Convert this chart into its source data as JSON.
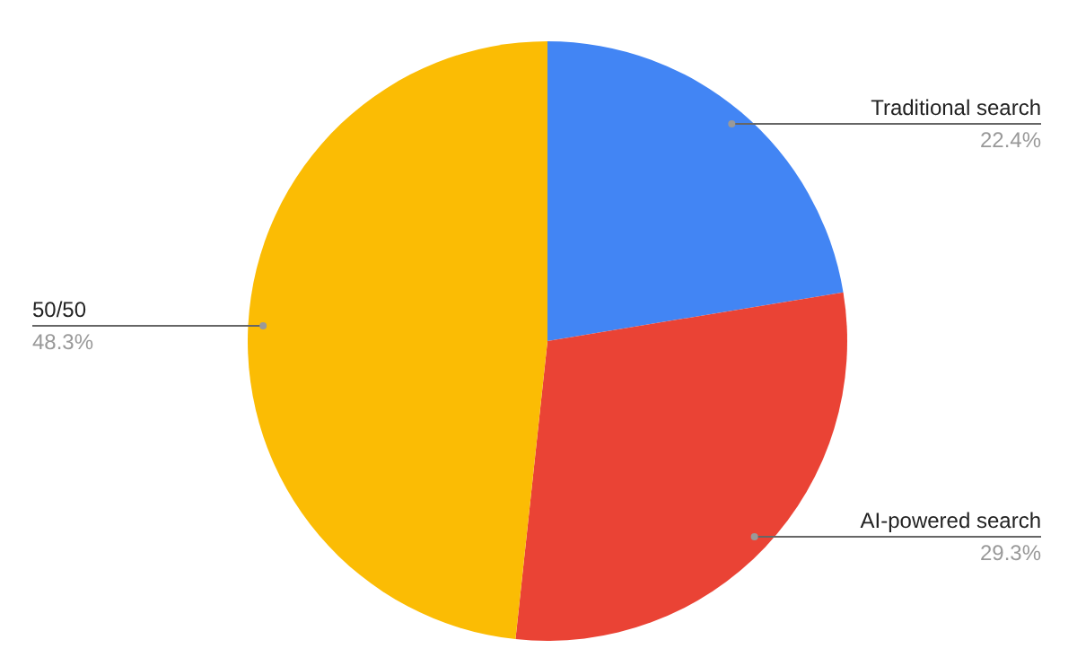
{
  "chart_data": {
    "type": "pie",
    "categories": [
      "Traditional search",
      "AI-powered search",
      "50/50"
    ],
    "values": [
      22.4,
      29.3,
      48.3
    ],
    "colors": [
      "#4285f4",
      "#ea4335",
      "#fbbc04"
    ],
    "value_labels": [
      "22.4%",
      "29.3%",
      "48.3%"
    ]
  }
}
